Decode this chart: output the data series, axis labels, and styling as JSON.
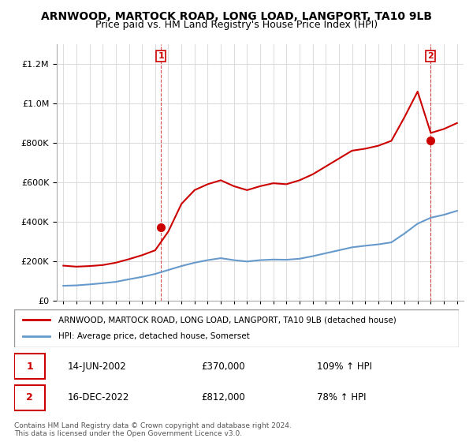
{
  "title": "ARNWOOD, MARTOCK ROAD, LONG LOAD, LANGPORT, TA10 9LB",
  "subtitle": "Price paid vs. HM Land Registry's House Price Index (HPI)",
  "legend_label_red": "ARNWOOD, MARTOCK ROAD, LONG LOAD, LANGPORT, TA10 9LB (detached house)",
  "legend_label_blue": "HPI: Average price, detached house, Somerset",
  "sale1_label": "14-JUN-2002",
  "sale1_price": "£370,000",
  "sale1_hpi": "109% ↑ HPI",
  "sale2_label": "16-DEC-2022",
  "sale2_price": "£812,000",
  "sale2_hpi": "78% ↑ HPI",
  "footer": "Contains HM Land Registry data © Crown copyright and database right 2024.\nThis data is licensed under the Open Government Licence v3.0.",
  "red_color": "#cc0000",
  "blue_color": "#6699cc",
  "background_color": "#ffffff",
  "grid_color": "#dddddd",
  "ylim": [
    0,
    1300000
  ],
  "sale1_year": 2002.45,
  "sale1_value": 370000,
  "sale2_year": 2022.96,
  "sale2_value": 812000,
  "hpi_years": [
    1995,
    1996,
    1997,
    1998,
    1999,
    2000,
    2001,
    2002,
    2003,
    2004,
    2005,
    2006,
    2007,
    2008,
    2009,
    2010,
    2011,
    2012,
    2013,
    2014,
    2015,
    2016,
    2017,
    2018,
    2019,
    2020,
    2021,
    2022,
    2023,
    2024,
    2025
  ],
  "hpi_blue": [
    75000,
    77000,
    82000,
    88000,
    95000,
    108000,
    120000,
    135000,
    155000,
    175000,
    192000,
    205000,
    215000,
    205000,
    198000,
    205000,
    208000,
    207000,
    212000,
    225000,
    240000,
    255000,
    270000,
    278000,
    285000,
    295000,
    340000,
    390000,
    420000,
    435000,
    455000
  ],
  "hpi_red": [
    177000,
    172000,
    175000,
    180000,
    192000,
    210000,
    230000,
    255000,
    350000,
    490000,
    560000,
    590000,
    610000,
    580000,
    560000,
    580000,
    595000,
    590000,
    610000,
    640000,
    680000,
    720000,
    760000,
    770000,
    785000,
    810000,
    930000,
    1060000,
    850000,
    870000,
    900000
  ]
}
